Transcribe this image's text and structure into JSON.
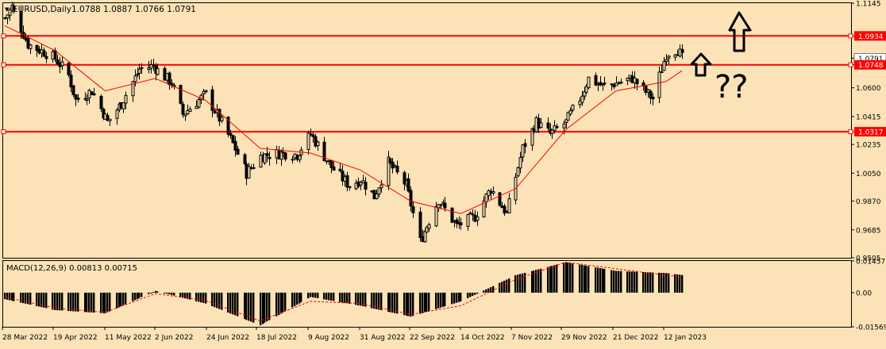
{
  "header": {
    "symbol_line": "EURUSD,Daily",
    "ohlc_line": "1.0788 1.0887 1.0766 1.0791",
    "dropdown_glyph": "▼"
  },
  "indicator": {
    "label": "MACD(12,26,9) 0.00813 0.00715"
  },
  "colors": {
    "background": "#fbe3b7",
    "candles": "#000000",
    "ma_line": "#ff0000",
    "hline": "#ff0000",
    "badge_bg": "#ff0000",
    "badge_text": "#ffffff",
    "signal_line": "#ff0000"
  },
  "annotations": {
    "question_text": "??"
  },
  "chart_data": [
    {
      "type": "candlestick",
      "symbol": "EURUSD",
      "timeframe": "Daily",
      "ylim": [
        0.9505,
        1.1145
      ],
      "y_ticks": [
        "1.1145",
        "1.0934",
        "1.0791",
        "1.0748",
        "1.0600",
        "1.0415",
        "1.0317",
        "1.0235",
        "1.0050",
        "0.9870",
        "0.9685",
        "0.9505"
      ],
      "price_badges": [
        {
          "label": "1.0934",
          "value": 1.0934,
          "style": "red"
        },
        {
          "label": "1.0791",
          "value": 1.0791,
          "style": "white"
        },
        {
          "label": "1.0748",
          "value": 1.0748,
          "style": "red"
        },
        {
          "label": "1.0317",
          "value": 1.0317,
          "style": "red"
        }
      ],
      "horizontal_lines": [
        1.0934,
        1.0748,
        1.0317
      ],
      "x_labels": [
        "28 Mar 2022",
        "19 Apr 2022",
        "11 May 2022",
        "2 Jun 2022",
        "24 Jun 2022",
        "18 Jul 2022",
        "9 Aug 2022",
        "31 Aug 2022",
        "22 Sep 2022",
        "14 Oct 2022",
        "7 Nov 2022",
        "29 Nov 2022",
        "21 Dec 2022",
        "12 Jan 2023"
      ],
      "close_path": [
        {
          "date": "28 Mar 2022",
          "close": 1.105
        },
        {
          "date": "31 Mar 2022",
          "close": 1.112
        },
        {
          "date": "7 Apr 2022",
          "close": 1.088
        },
        {
          "date": "14 Apr 2022",
          "close": 1.083
        },
        {
          "date": "19 Apr 2022",
          "close": 1.079
        },
        {
          "date": "25 Apr 2022",
          "close": 1.068
        },
        {
          "date": "28 Apr 2022",
          "close": 1.052
        },
        {
          "date": "5 May 2022",
          "close": 1.058
        },
        {
          "date": "12 May 2022",
          "close": 1.038
        },
        {
          "date": "18 May 2022",
          "close": 1.05
        },
        {
          "date": "26 May 2022",
          "close": 1.072
        },
        {
          "date": "1 Jun 2022",
          "close": 1.074
        },
        {
          "date": "9 Jun 2022",
          "close": 1.063
        },
        {
          "date": "14 Jun 2022",
          "close": 1.043
        },
        {
          "date": "24 Jun 2022",
          "close": 1.056
        },
        {
          "date": "5 Jul 2022",
          "close": 1.027
        },
        {
          "date": "12 Jul 2022",
          "close": 1.005
        },
        {
          "date": "18 Jul 2022",
          "close": 1.016
        },
        {
          "date": "27 Jul 2022",
          "close": 1.018
        },
        {
          "date": "3 Aug 2022",
          "close": 1.017
        },
        {
          "date": "9 Aug 2022",
          "close": 1.03
        },
        {
          "date": "18 Aug 2022",
          "close": 1.009
        },
        {
          "date": "26 Aug 2022",
          "close": 0.997
        },
        {
          "date": "31 Aug 2022",
          "close": 1.001
        },
        {
          "date": "6 Sep 2022",
          "close": 0.99
        },
        {
          "date": "12 Sep 2022",
          "close": 1.012
        },
        {
          "date": "20 Sep 2022",
          "close": 0.997
        },
        {
          "date": "26 Sep 2022",
          "close": 0.961
        },
        {
          "date": "4 Oct 2022",
          "close": 0.988
        },
        {
          "date": "12 Oct 2022",
          "close": 0.971
        },
        {
          "date": "20 Oct 2022",
          "close": 0.977
        },
        {
          "date": "27 Oct 2022",
          "close": 0.995
        },
        {
          "date": "3 Nov 2022",
          "close": 0.979
        },
        {
          "date": "10 Nov 2022",
          "close": 1.021
        },
        {
          "date": "16 Nov 2022",
          "close": 1.038
        },
        {
          "date": "22 Nov 2022",
          "close": 1.03
        },
        {
          "date": "29 Nov 2022",
          "close": 1.038
        },
        {
          "date": "5 Dec 2022",
          "close": 1.053
        },
        {
          "date": "9 Dec 2022",
          "close": 1.066
        },
        {
          "date": "15 Dec 2022",
          "close": 1.061
        },
        {
          "date": "21 Dec 2022",
          "close": 1.063
        },
        {
          "date": "28 Dec 2022",
          "close": 1.066
        },
        {
          "date": "6 Jan 2023",
          "close": 1.053
        },
        {
          "date": "12 Jan 2023",
          "close": 1.082
        },
        {
          "date": "17 Jan 2023",
          "close": 1.085
        },
        {
          "date": "19 Jan 2023",
          "close": 1.0791
        }
      ],
      "moving_average": [
        {
          "date": "28 Mar 2022",
          "value": 1.1
        },
        {
          "date": "19 Apr 2022",
          "value": 1.084
        },
        {
          "date": "11 May 2022",
          "value": 1.058
        },
        {
          "date": "2 Jun 2022",
          "value": 1.066
        },
        {
          "date": "24 Jun 2022",
          "value": 1.052
        },
        {
          "date": "18 Jul 2022",
          "value": 1.021
        },
        {
          "date": "9 Aug 2022",
          "value": 1.018
        },
        {
          "date": "31 Aug 2022",
          "value": 1.007
        },
        {
          "date": "22 Sep 2022",
          "value": 0.987
        },
        {
          "date": "14 Oct 2022",
          "value": 0.979
        },
        {
          "date": "7 Nov 2022",
          "value": 0.995
        },
        {
          "date": "29 Nov 2022",
          "value": 1.033
        },
        {
          "date": "21 Dec 2022",
          "value": 1.058
        },
        {
          "date": "12 Jan 2023",
          "value": 1.064
        },
        {
          "date": "19 Jan 2023",
          "value": 1.071
        }
      ]
    },
    {
      "type": "histogram",
      "title": "MACD(12,26,9)",
      "current_macd": 0.00813,
      "current_signal": 0.00715,
      "ylim": [
        -0.01569,
        0.01457
      ],
      "y_ticks": [
        "0.01457",
        "0.00",
        "-0.01569"
      ],
      "macd_path": [
        {
          "date": "28 Mar 2022",
          "value": -0.003
        },
        {
          "date": "19 Apr 2022",
          "value": -0.008
        },
        {
          "date": "11 May 2022",
          "value": -0.0095
        },
        {
          "date": "2 Jun 2022",
          "value": 0.0008
        },
        {
          "date": "24 Jun 2022",
          "value": -0.005
        },
        {
          "date": "18 Jul 2022",
          "value": -0.015
        },
        {
          "date": "9 Aug 2022",
          "value": -0.002
        },
        {
          "date": "31 Aug 2022",
          "value": -0.006
        },
        {
          "date": "22 Sep 2022",
          "value": -0.011
        },
        {
          "date": "14 Oct 2022",
          "value": -0.004
        },
        {
          "date": "7 Nov 2022",
          "value": 0.008
        },
        {
          "date": "29 Nov 2022",
          "value": 0.014
        },
        {
          "date": "21 Dec 2022",
          "value": 0.01
        },
        {
          "date": "12 Jan 2023",
          "value": 0.009
        },
        {
          "date": "19 Jan 2023",
          "value": 0.0081
        }
      ],
      "signal_path": [
        {
          "date": "28 Mar 2022",
          "value": -0.002
        },
        {
          "date": "19 Apr 2022",
          "value": -0.007
        },
        {
          "date": "11 May 2022",
          "value": -0.009
        },
        {
          "date": "2 Jun 2022",
          "value": -0.0005
        },
        {
          "date": "24 Jun 2022",
          "value": -0.0035
        },
        {
          "date": "18 Jul 2022",
          "value": -0.013
        },
        {
          "date": "9 Aug 2022",
          "value": -0.004
        },
        {
          "date": "31 Aug 2022",
          "value": -0.005
        },
        {
          "date": "22 Sep 2022",
          "value": -0.01
        },
        {
          "date": "14 Oct 2022",
          "value": -0.006
        },
        {
          "date": "7 Nov 2022",
          "value": 0.006
        },
        {
          "date": "29 Nov 2022",
          "value": 0.014
        },
        {
          "date": "21 Dec 2022",
          "value": 0.011
        },
        {
          "date": "12 Jan 2023",
          "value": 0.008
        },
        {
          "date": "19 Jan 2023",
          "value": 0.0072
        }
      ]
    }
  ]
}
